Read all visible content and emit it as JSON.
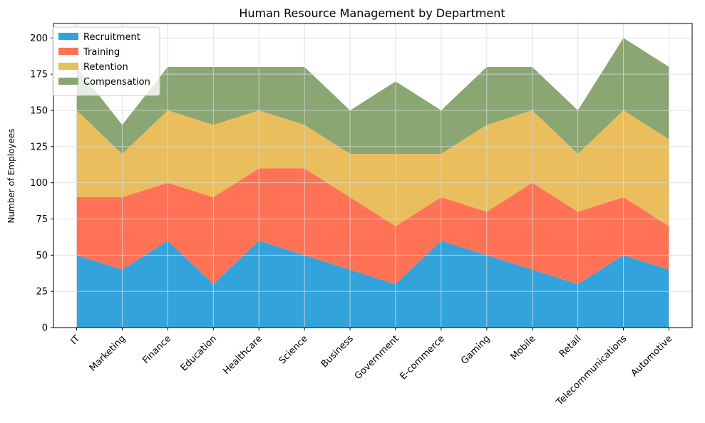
{
  "chart_data": {
    "type": "area",
    "stacked": true,
    "title": "Human Resource Management by Department",
    "xlabel": "",
    "ylabel": "Number of Employees",
    "categories": [
      "IT",
      "Marketing",
      "Finance",
      "Education",
      "Healthcare",
      "Science",
      "Business",
      "Government",
      "E-commerce",
      "Gaming",
      "Mobile",
      "Retail",
      "Telecommunications",
      "Automotive"
    ],
    "series": [
      {
        "name": "Recruitment",
        "color": "#33a3dc",
        "values": [
          50,
          40,
          60,
          30,
          60,
          50,
          40,
          30,
          60,
          50,
          40,
          30,
          50,
          40
        ]
      },
      {
        "name": "Training",
        "color": "#ff7256",
        "values": [
          40,
          50,
          40,
          60,
          50,
          60,
          50,
          40,
          30,
          30,
          60,
          50,
          40,
          30
        ]
      },
      {
        "name": "Retention",
        "color": "#eabd5d",
        "values": [
          60,
          30,
          50,
          50,
          40,
          30,
          30,
          50,
          30,
          60,
          50,
          40,
          60,
          60
        ]
      },
      {
        "name": "Compensation",
        "color": "#8aa672",
        "values": [
          30,
          20,
          30,
          40,
          30,
          40,
          30,
          50,
          30,
          40,
          30,
          30,
          50,
          50
        ]
      }
    ],
    "ylim": [
      0,
      210
    ],
    "yticks": [
      0,
      25,
      50,
      75,
      100,
      125,
      150,
      175,
      200
    ],
    "grid": true,
    "legend_position": "top-left"
  }
}
